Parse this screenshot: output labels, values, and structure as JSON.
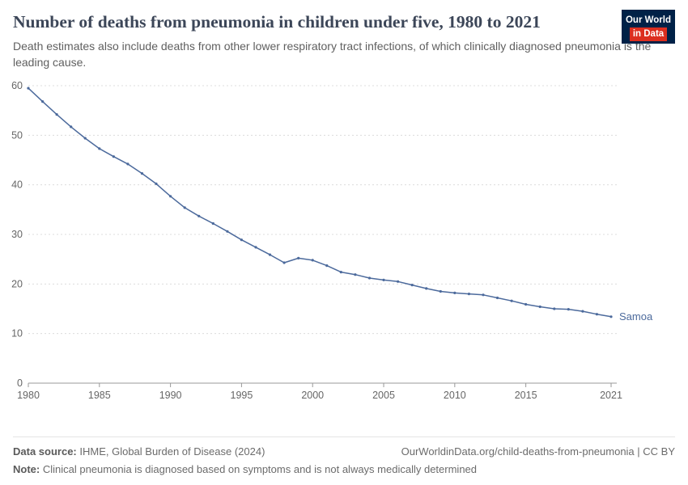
{
  "header": {
    "title": "Number of deaths from pneumonia in children under five, 1980 to 2021",
    "subtitle": "Death estimates also include deaths from other lower respiratory tract infections, of which clinically diagnosed pneumonia is the leading cause.",
    "logo": {
      "line1": "Our World",
      "line2": "in Data"
    }
  },
  "chart_data": {
    "type": "line",
    "title": "Number of deaths from pneumonia in children under five, 1980 to 2021",
    "xlabel": "",
    "ylabel": "",
    "ylim": [
      0,
      60
    ],
    "yticks": [
      0,
      10,
      20,
      30,
      40,
      50,
      60
    ],
    "xticks": [
      1980,
      1985,
      1990,
      1995,
      2000,
      2005,
      2010,
      2015,
      2021
    ],
    "grid": "dashed-horizontal",
    "legend_position": "end-of-line-label",
    "x": [
      1980,
      1981,
      1982,
      1983,
      1984,
      1985,
      1986,
      1987,
      1988,
      1989,
      1990,
      1991,
      1992,
      1993,
      1994,
      1995,
      1996,
      1997,
      1998,
      1999,
      2000,
      2001,
      2002,
      2003,
      2004,
      2005,
      2006,
      2007,
      2008,
      2009,
      2010,
      2011,
      2012,
      2013,
      2014,
      2015,
      2016,
      2017,
      2018,
      2019,
      2020,
      2021
    ],
    "series": [
      {
        "name": "Samoa",
        "color": "#4C6A9C",
        "values": [
          59.5,
          56.8,
          54.2,
          51.7,
          49.4,
          47.3,
          45.7,
          44.2,
          42.3,
          40.2,
          37.7,
          35.4,
          33.7,
          32.2,
          30.6,
          28.9,
          27.4,
          25.9,
          24.3,
          25.2,
          24.8,
          23.7,
          22.4,
          21.9,
          21.2,
          20.8,
          20.5,
          19.8,
          19.1,
          18.5,
          18.2,
          18.0,
          17.8,
          17.2,
          16.6,
          15.9,
          15.4,
          15.0,
          14.9,
          14.5,
          13.9,
          13.4
        ]
      }
    ],
    "colors": {
      "gridline": "#dcdcdc",
      "axis": "#999999",
      "tick_label": "#666666"
    }
  },
  "footer": {
    "datasource_label": "Data source:",
    "datasource_text": " IHME, Global Burden of Disease (2024)",
    "link": "OurWorldinData.org/child-deaths-from-pneumonia | CC BY",
    "note_label": "Note:",
    "note_text": " Clinical pneumonia is diagnosed based on symptoms and is not always medically determined"
  }
}
